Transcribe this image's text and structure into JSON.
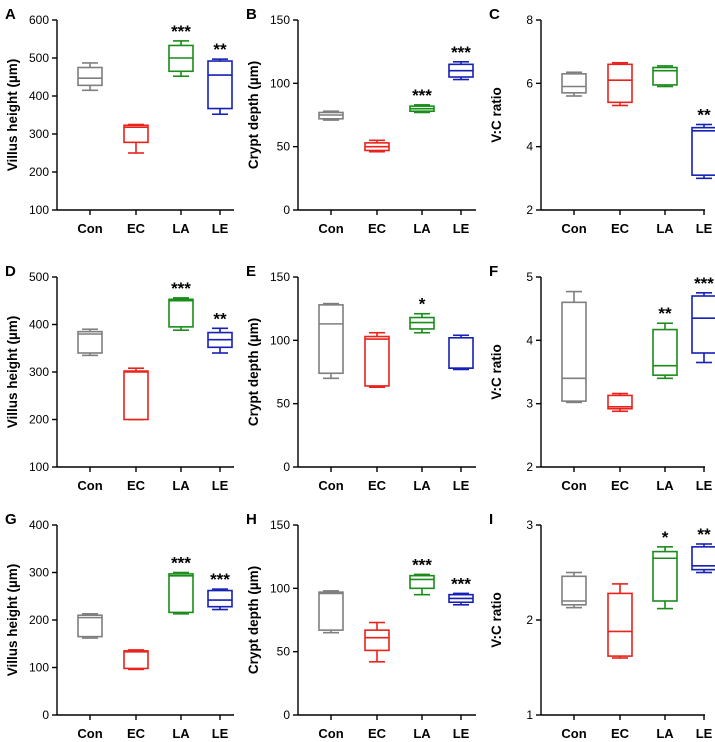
{
  "colors": {
    "Con": "#7f7f7f",
    "EC": "#e8231c",
    "LA": "#1a8c1a",
    "LE": "#1520b4"
  },
  "chart_data": [
    {
      "panel": "A",
      "type": "box",
      "ylabel": "Villus height (µm)",
      "ylim": [
        100,
        600
      ],
      "yticks": [
        100,
        200,
        300,
        400,
        500,
        600
      ],
      "categories": [
        "Con",
        "EC",
        "LA",
        "LE"
      ],
      "boxes": [
        {
          "group": "Con",
          "min": 415,
          "q1": 428,
          "median": 447,
          "q3": 475,
          "max": 487,
          "sig": ""
        },
        {
          "group": "EC",
          "min": 250,
          "q1": 278,
          "median": 318,
          "q3": 323,
          "max": 325,
          "sig": ""
        },
        {
          "group": "LA",
          "min": 452,
          "q1": 465,
          "median": 500,
          "q3": 533,
          "max": 545,
          "sig": "***"
        },
        {
          "group": "LE",
          "min": 352,
          "q1": 367,
          "median": 455,
          "q3": 492,
          "max": 497,
          "sig": "**"
        }
      ]
    },
    {
      "panel": "B",
      "type": "box",
      "ylabel": "Crypt depth (µm)",
      "ylim": [
        0,
        150
      ],
      "yticks": [
        0,
        50,
        100,
        150
      ],
      "categories": [
        "Con",
        "EC",
        "LA",
        "LE"
      ],
      "boxes": [
        {
          "group": "Con",
          "min": 71,
          "q1": 72,
          "median": 75,
          "q3": 77,
          "max": 78,
          "sig": ""
        },
        {
          "group": "EC",
          "min": 46,
          "q1": 47,
          "median": 50,
          "q3": 53,
          "max": 55,
          "sig": ""
        },
        {
          "group": "LA",
          "min": 77,
          "q1": 78,
          "median": 80,
          "q3": 82,
          "max": 83,
          "sig": "***"
        },
        {
          "group": "LE",
          "min": 103,
          "q1": 105,
          "median": 110,
          "q3": 115,
          "max": 117,
          "sig": "***"
        }
      ]
    },
    {
      "panel": "C",
      "type": "box",
      "ylabel": "V:C ratio",
      "ylim": [
        2,
        8
      ],
      "yticks": [
        2,
        4,
        6,
        8
      ],
      "categories": [
        "Con",
        "EC",
        "LA",
        "LE"
      ],
      "boxes": [
        {
          "group": "Con",
          "min": 5.6,
          "q1": 5.7,
          "median": 5.9,
          "q3": 6.3,
          "max": 6.35,
          "sig": ""
        },
        {
          "group": "EC",
          "min": 5.3,
          "q1": 5.4,
          "median": 6.1,
          "q3": 6.6,
          "max": 6.65,
          "sig": ""
        },
        {
          "group": "LA",
          "min": 5.9,
          "q1": 5.95,
          "median": 6.4,
          "q3": 6.5,
          "max": 6.55,
          "sig": ""
        },
        {
          "group": "LE",
          "min": 3.0,
          "q1": 3.1,
          "median": 4.5,
          "q3": 4.6,
          "max": 4.7,
          "sig": "**"
        }
      ]
    },
    {
      "panel": "D",
      "type": "box",
      "ylabel": "Villus height (µm)",
      "ylim": [
        100,
        500
      ],
      "yticks": [
        100,
        200,
        300,
        400,
        500
      ],
      "categories": [
        "Con",
        "EC",
        "LA",
        "LE"
      ],
      "boxes": [
        {
          "group": "Con",
          "min": 335,
          "q1": 340,
          "median": 380,
          "q3": 385,
          "max": 390,
          "sig": ""
        },
        {
          "group": "EC",
          "min": 200,
          "q1": 200,
          "median": 300,
          "q3": 302,
          "max": 308,
          "sig": ""
        },
        {
          "group": "LA",
          "min": 388,
          "q1": 395,
          "median": 450,
          "q3": 453,
          "max": 456,
          "sig": "***"
        },
        {
          "group": "LE",
          "min": 340,
          "q1": 352,
          "median": 368,
          "q3": 383,
          "max": 392,
          "sig": "**"
        }
      ]
    },
    {
      "panel": "E",
      "type": "box",
      "ylabel": "Crypt depth (µm)",
      "ylim": [
        0,
        150
      ],
      "yticks": [
        0,
        50,
        100,
        150
      ],
      "categories": [
        "Con",
        "EC",
        "LA",
        "LE"
      ],
      "boxes": [
        {
          "group": "Con",
          "min": 70,
          "q1": 74,
          "median": 113,
          "q3": 128,
          "max": 129,
          "sig": ""
        },
        {
          "group": "EC",
          "min": 63,
          "q1": 64,
          "median": 101,
          "q3": 103,
          "max": 106,
          "sig": ""
        },
        {
          "group": "LA",
          "min": 106,
          "q1": 109,
          "median": 114,
          "q3": 118,
          "max": 121,
          "sig": "*"
        },
        {
          "group": "LE",
          "min": 77,
          "q1": 78,
          "median": 78,
          "q3": 102,
          "max": 104,
          "sig": ""
        }
      ]
    },
    {
      "panel": "F",
      "type": "box",
      "ylabel": "V:C ratio",
      "ylim": [
        2,
        5
      ],
      "yticks": [
        2,
        3,
        4,
        5
      ],
      "categories": [
        "Con",
        "EC",
        "LA",
        "LE"
      ],
      "boxes": [
        {
          "group": "Con",
          "min": 3.02,
          "q1": 3.04,
          "median": 3.4,
          "q3": 4.6,
          "max": 4.77,
          "sig": ""
        },
        {
          "group": "EC",
          "min": 2.88,
          "q1": 2.92,
          "median": 2.95,
          "q3": 3.13,
          "max": 3.16,
          "sig": ""
        },
        {
          "group": "LA",
          "min": 3.4,
          "q1": 3.45,
          "median": 3.6,
          "q3": 4.17,
          "max": 4.27,
          "sig": "**"
        },
        {
          "group": "LE",
          "min": 3.65,
          "q1": 3.8,
          "median": 4.35,
          "q3": 4.7,
          "max": 4.75,
          "sig": "***"
        }
      ]
    },
    {
      "panel": "G",
      "type": "box",
      "ylabel": "Villus height (µm)",
      "ylim": [
        0,
        400
      ],
      "yticks": [
        0,
        100,
        200,
        300,
        400
      ],
      "categories": [
        "Con",
        "EC",
        "LA",
        "LE"
      ],
      "boxes": [
        {
          "group": "Con",
          "min": 162,
          "q1": 165,
          "median": 205,
          "q3": 210,
          "max": 213,
          "sig": ""
        },
        {
          "group": "EC",
          "min": 96,
          "q1": 98,
          "median": 133,
          "q3": 135,
          "max": 137,
          "sig": ""
        },
        {
          "group": "LA",
          "min": 213,
          "q1": 216,
          "median": 293,
          "q3": 297,
          "max": 300,
          "sig": "***"
        },
        {
          "group": "LE",
          "min": 222,
          "q1": 228,
          "median": 242,
          "q3": 262,
          "max": 265,
          "sig": "***"
        }
      ]
    },
    {
      "panel": "H",
      "type": "box",
      "ylabel": "Crypt depth (µm)",
      "ylim": [
        0,
        150
      ],
      "yticks": [
        0,
        50,
        100,
        150
      ],
      "categories": [
        "Con",
        "EC",
        "LA",
        "LE"
      ],
      "boxes": [
        {
          "group": "Con",
          "min": 65,
          "q1": 67,
          "median": 96,
          "q3": 97,
          "max": 98,
          "sig": ""
        },
        {
          "group": "EC",
          "min": 42,
          "q1": 51,
          "median": 61,
          "q3": 67,
          "max": 73,
          "sig": ""
        },
        {
          "group": "LA",
          "min": 95,
          "q1": 100,
          "median": 107,
          "q3": 110,
          "max": 111,
          "sig": "***"
        },
        {
          "group": "LE",
          "min": 87,
          "q1": 89,
          "median": 92,
          "q3": 95,
          "max": 96,
          "sig": "***"
        }
      ]
    },
    {
      "panel": "I",
      "type": "box",
      "ylabel": "V:C ratio",
      "ylim": [
        1,
        3
      ],
      "yticks": [
        1,
        2,
        3
      ],
      "categories": [
        "Con",
        "EC",
        "LA",
        "LE"
      ],
      "boxes": [
        {
          "group": "Con",
          "min": 2.13,
          "q1": 2.16,
          "median": 2.2,
          "q3": 2.46,
          "max": 2.5,
          "sig": ""
        },
        {
          "group": "EC",
          "min": 1.6,
          "q1": 1.62,
          "median": 1.88,
          "q3": 2.28,
          "max": 2.38,
          "sig": ""
        },
        {
          "group": "LA",
          "min": 2.12,
          "q1": 2.2,
          "median": 2.65,
          "q3": 2.72,
          "max": 2.77,
          "sig": "*"
        },
        {
          "group": "LE",
          "min": 2.5,
          "q1": 2.53,
          "median": 2.57,
          "q3": 2.77,
          "max": 2.8,
          "sig": "**"
        }
      ]
    }
  ]
}
